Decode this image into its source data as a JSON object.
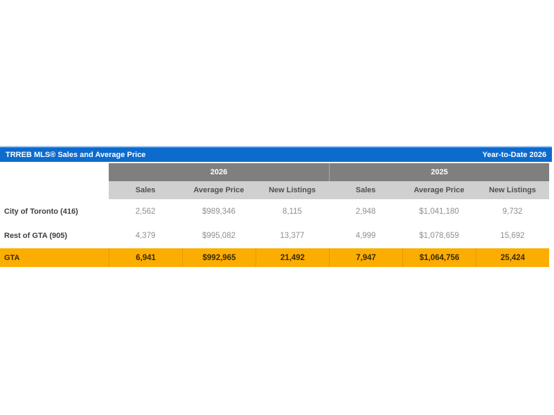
{
  "title_bar": {
    "title": "TRREB MLS® Sales and Average Price",
    "right_label": "Year-to-Date 2026"
  },
  "colors": {
    "header_blue": "#0d6bce",
    "header_blue_top_edge": "#a3c6ec",
    "year_band_gray": "#7f7f7f",
    "column_band_gray": "#d0d0d0",
    "gta_row_orange": "#fcad02",
    "value_text_gray": "#8e8e8e",
    "label_text_dark": "#3d3d3d"
  },
  "table": {
    "year_groups": [
      "2026",
      "2025"
    ],
    "column_headers": [
      "Sales",
      "Average Price",
      "New Listings",
      "Sales",
      "Average Price",
      "New Listings"
    ],
    "rows": [
      {
        "label": "City of Toronto (416)",
        "values": [
          "2,562",
          "$989,346",
          "8,115",
          "2,948",
          "$1,041,180",
          "9,732"
        ]
      },
      {
        "label": "Rest of GTA (905)",
        "values": [
          "4,379",
          "$995,082",
          "13,377",
          "4,999",
          "$1,078,659",
          "15,692"
        ]
      },
      {
        "label": "GTA",
        "highlight": "orange",
        "values": [
          "6,941",
          "$992,965",
          "21,492",
          "7,947",
          "$1,064,756",
          "25,424"
        ]
      }
    ]
  },
  "chart_data": {
    "type": "table",
    "title": "TRREB MLS® Sales and Average Price",
    "subtitle": "Year-to-Date 2026",
    "column_groups": [
      "2026",
      "2025"
    ],
    "columns": [
      "Sales 2026",
      "Average Price 2026",
      "New Listings 2026",
      "Sales 2025",
      "Average Price 2025",
      "New Listings 2025"
    ],
    "rows": [
      {
        "region": "City of Toronto (416)",
        "sales_2026": 2562,
        "average_price_2026": 989346,
        "new_listings_2026": 8115,
        "sales_2025": 2948,
        "average_price_2025": 1041180,
        "new_listings_2025": 9732
      },
      {
        "region": "Rest of GTA (905)",
        "sales_2026": 4379,
        "average_price_2026": 995082,
        "new_listings_2026": 13377,
        "sales_2025": 4999,
        "average_price_2025": 1078659,
        "new_listings_2025": 15692
      },
      {
        "region": "GTA",
        "sales_2026": 6941,
        "average_price_2026": 992965,
        "new_listings_2026": 21492,
        "sales_2025": 7947,
        "average_price_2025": 1064756,
        "new_listings_2025": 25424
      }
    ]
  }
}
